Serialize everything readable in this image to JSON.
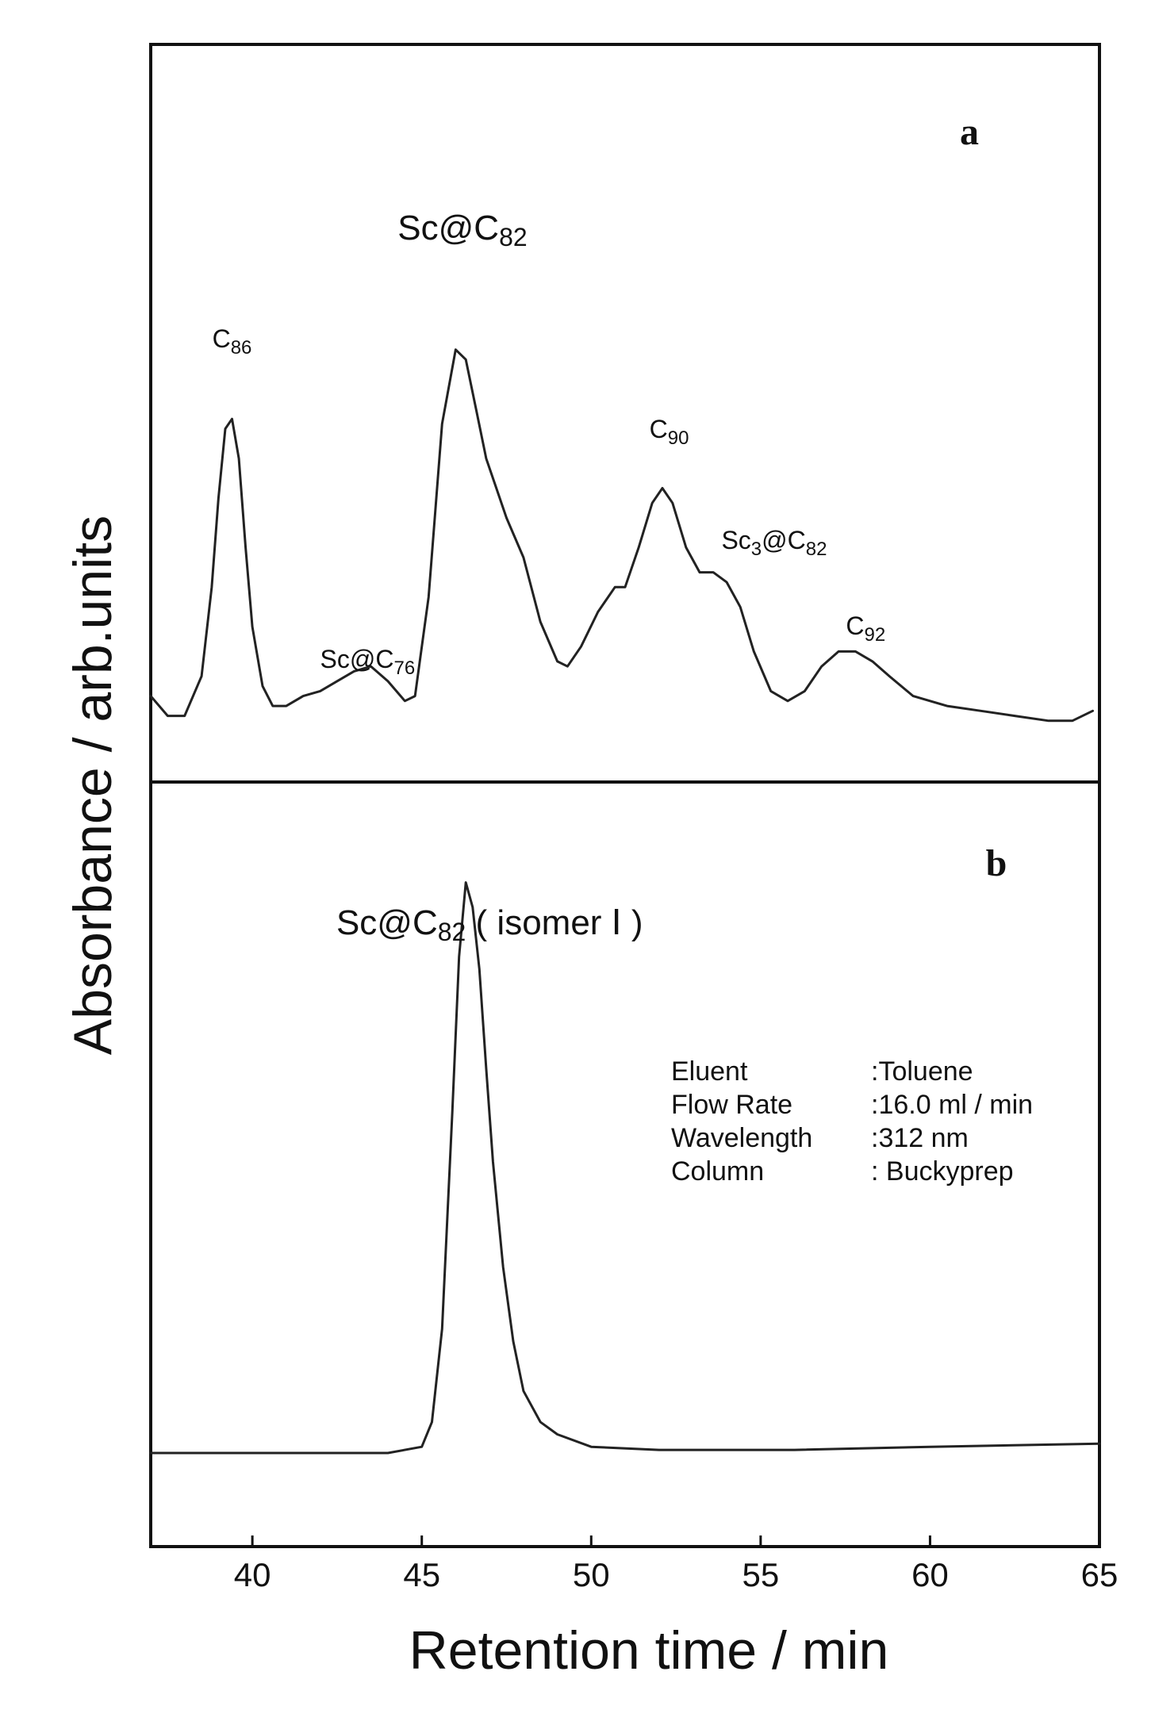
{
  "chart_data": [
    {
      "panel": "a",
      "type": "line",
      "xlabel": "Retention time / min",
      "ylabel": "Absorbance / arb.units",
      "xlim": [
        37,
        65
      ],
      "ylim": [
        0,
        1.0
      ],
      "grid": false,
      "x_ticks": [
        40,
        45,
        50,
        55,
        60,
        65
      ],
      "series": [
        {
          "x": [
            37.0,
            37.5,
            38.0,
            38.5,
            38.8,
            39.0,
            39.2,
            39.4,
            39.6,
            39.8,
            40.0,
            40.3,
            40.6,
            41.0,
            41.5,
            42.0,
            42.5,
            43.0,
            43.5,
            44.0,
            44.5,
            44.8,
            45.2,
            45.6,
            46.0,
            46.3,
            46.6,
            46.9,
            47.2,
            47.5,
            48.0,
            48.5,
            49.0,
            49.3,
            49.7,
            50.2,
            50.7,
            51.0,
            51.4,
            51.8,
            52.1,
            52.4,
            52.8,
            53.2,
            53.6,
            54.0,
            54.4,
            54.8,
            55.3,
            55.8,
            56.3,
            56.8,
            57.3,
            57.8,
            58.3,
            58.8,
            59.5,
            60.5,
            61.5,
            62.5,
            63.5,
            64.2,
            64.8
          ],
          "y": [
            0.1,
            0.06,
            0.06,
            0.14,
            0.32,
            0.5,
            0.64,
            0.66,
            0.58,
            0.4,
            0.24,
            0.12,
            0.08,
            0.08,
            0.1,
            0.11,
            0.13,
            0.15,
            0.16,
            0.13,
            0.09,
            0.1,
            0.3,
            0.65,
            0.8,
            0.78,
            0.68,
            0.58,
            0.52,
            0.46,
            0.38,
            0.25,
            0.17,
            0.16,
            0.2,
            0.27,
            0.32,
            0.32,
            0.4,
            0.49,
            0.52,
            0.49,
            0.4,
            0.35,
            0.35,
            0.33,
            0.28,
            0.19,
            0.11,
            0.09,
            0.11,
            0.16,
            0.19,
            0.19,
            0.17,
            0.14,
            0.1,
            0.08,
            0.07,
            0.06,
            0.05,
            0.05,
            0.07
          ]
        }
      ],
      "annotations": [
        {
          "text": "C",
          "sub": "86",
          "x": 39.4
        },
        {
          "text": "Sc@C",
          "sub": "76",
          "x": 43.4
        },
        {
          "text": "Sc@C",
          "sub": "82",
          "x": 46.2
        },
        {
          "text": "C",
          "sub": "90",
          "x": 52.3
        },
        {
          "text": "Sc",
          "sub": "3",
          "text2": "@C",
          "sub2": "82",
          "x": 55.4
        },
        {
          "text": "C",
          "sub": "92",
          "x": 58.1
        }
      ]
    },
    {
      "panel": "b",
      "type": "line",
      "xlabel": "Retention time / min",
      "ylabel": "Absorbance / arb.units",
      "xlim": [
        37,
        65
      ],
      "ylim": [
        0,
        1.0
      ],
      "grid": false,
      "x_ticks": [
        40,
        45,
        50,
        55,
        60,
        65
      ],
      "series": [
        {
          "x": [
            37.0,
            40.0,
            44.0,
            45.0,
            45.3,
            45.6,
            45.9,
            46.1,
            46.3,
            46.5,
            46.7,
            46.9,
            47.1,
            47.4,
            47.7,
            48.0,
            48.5,
            49.0,
            50.0,
            52.0,
            56.0,
            60.0,
            65.0
          ],
          "y": [
            0.0,
            0.0,
            0.0,
            0.01,
            0.05,
            0.2,
            0.55,
            0.8,
            0.92,
            0.88,
            0.78,
            0.62,
            0.47,
            0.3,
            0.18,
            0.1,
            0.05,
            0.03,
            0.01,
            0.005,
            0.005,
            0.01,
            0.015
          ]
        }
      ],
      "annotations": [
        {
          "text": "Sc@C",
          "sub": "82",
          "text2": "( isomer Ⅰ )",
          "x": 46.3
        }
      ]
    }
  ],
  "figure": {
    "panel_a_letter": "a",
    "panel_b_letter": "b",
    "xlabel": "Retention time / min",
    "ylabel": "Absorbance / arb.units",
    "conditions": [
      {
        "key": "Eluent",
        "value": ":Toluene"
      },
      {
        "key": "Flow Rate",
        "value": ":16.0 ml / min"
      },
      {
        "key": "Wavelength",
        "value": ":312 nm"
      },
      {
        "key": "Column",
        "value": ": Buckyprep"
      }
    ]
  }
}
